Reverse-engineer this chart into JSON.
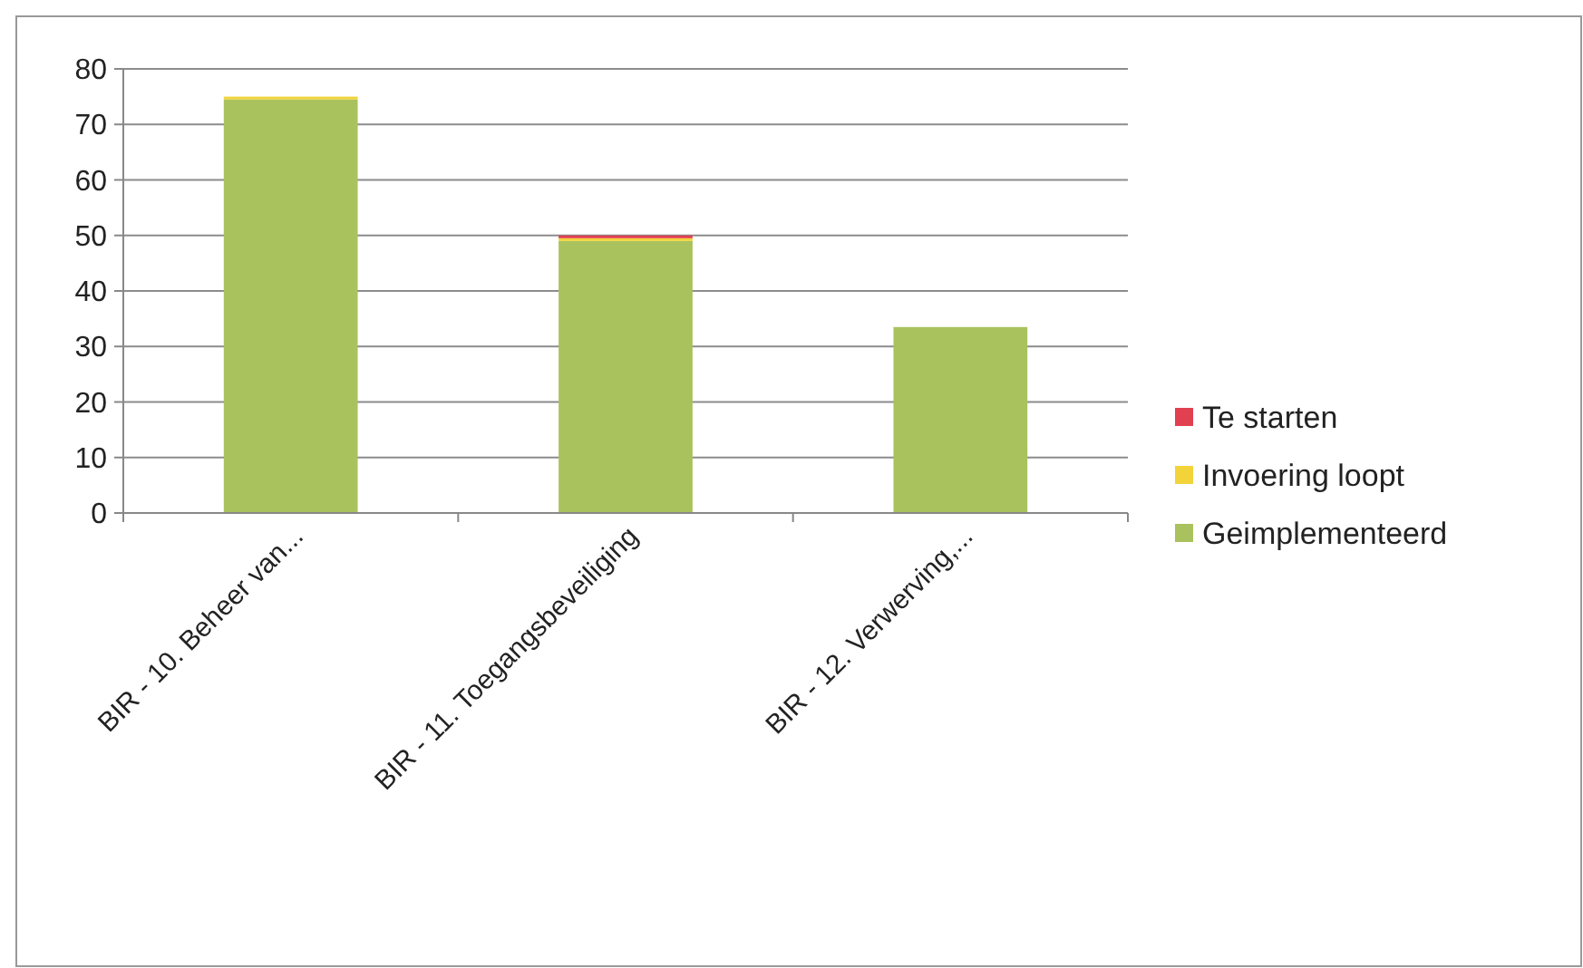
{
  "chart_data": {
    "type": "bar",
    "stacked": true,
    "categories": [
      "BIR - 10. Beheer van...",
      "BIR - 11. Toegangsbeveiliging",
      "BIR - 12. Verwerving,..."
    ],
    "series": [
      {
        "name": "Geimplementeerd",
        "color": "#a9c25d",
        "values": [
          74.5,
          49,
          33.5
        ]
      },
      {
        "name": "Invoering loopt",
        "color": "#f2d43a",
        "values": [
          0.5,
          0.5,
          0
        ]
      },
      {
        "name": "Te starten",
        "color": "#e0404f",
        "values": [
          0,
          0.5,
          0
        ]
      }
    ],
    "ylim": [
      0,
      80
    ],
    "yticks": [
      0,
      10,
      20,
      30,
      40,
      50,
      60,
      70,
      80
    ],
    "grid": "y",
    "legend": "right"
  }
}
